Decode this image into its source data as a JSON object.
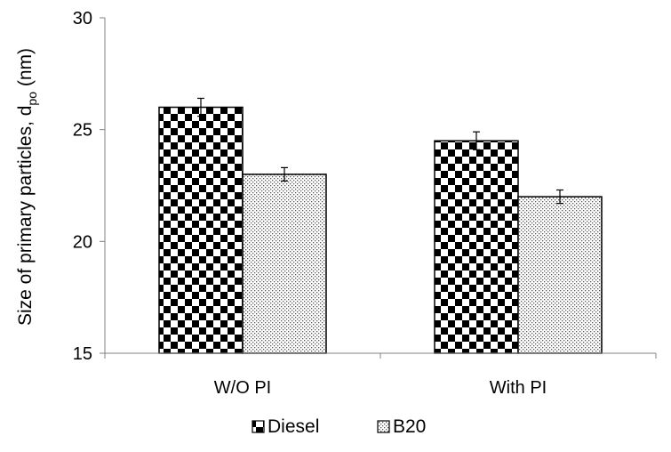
{
  "chart_data": {
    "type": "bar",
    "title": "",
    "ylabel": "Size of primary particles, d",
    "ylabel_subscript": "po",
    "ylabel_unit": " (nm)",
    "xlabel": "",
    "ylim": [
      15,
      30
    ],
    "y_ticks": [
      15,
      20,
      25,
      30
    ],
    "categories": [
      "W/O PI",
      "With PI"
    ],
    "series": [
      {
        "name": "Diesel",
        "pattern": "checker",
        "values": [
          26.0,
          24.5
        ],
        "errors": [
          0.4,
          0.4
        ]
      },
      {
        "name": "B20",
        "pattern": "dots",
        "values": [
          23.0,
          22.0
        ],
        "errors": [
          0.3,
          0.3
        ]
      }
    ],
    "legend_position": "bottom",
    "grid": false,
    "colors": {
      "bar_edge": "#000000",
      "fill_dark": "#000000",
      "fill_light": "#ffffff",
      "axis": "#808080"
    }
  }
}
